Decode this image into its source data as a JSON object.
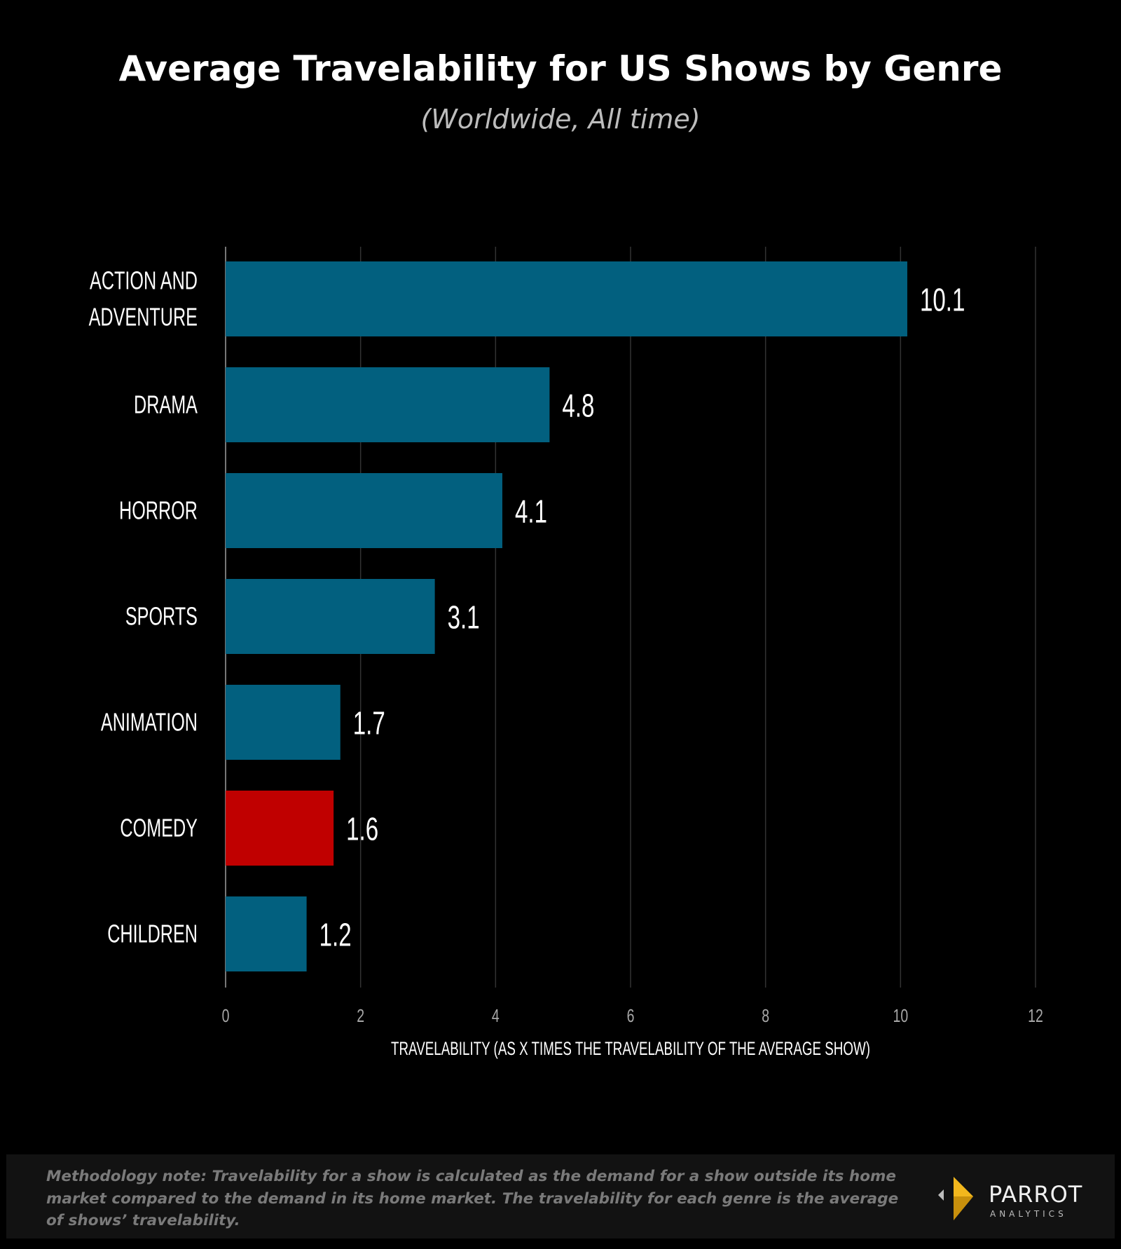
{
  "chart_data": {
    "type": "bar",
    "orientation": "horizontal",
    "title": "Average Travelability for US Shows by Genre",
    "subtitle": "(Worldwide, All time)",
    "categories": [
      "ACTION AND ADVENTURE",
      "DRAMA",
      "HORROR",
      "SPORTS",
      "ANIMATION",
      "COMEDY",
      "CHILDREN"
    ],
    "category_lines": [
      [
        "ACTION AND",
        "ADVENTURE"
      ],
      [
        "DRAMA"
      ],
      [
        "HORROR"
      ],
      [
        "SPORTS"
      ],
      [
        "ANIMATION"
      ],
      [
        "COMEDY"
      ],
      [
        "CHILDREN"
      ]
    ],
    "values": [
      10.1,
      4.8,
      4.1,
      3.1,
      1.7,
      1.6,
      1.2
    ],
    "data_labels": [
      "10.1",
      "4.8",
      "4.1",
      "3.1",
      "1.7",
      "1.6",
      "1.2"
    ],
    "highlight_category": "COMEDY",
    "xlabel": "TRAVELABILITY (AS X TIMES THE TRAVELABILITY OF THE AVERAGE SHOW)",
    "xlim": [
      0,
      12
    ],
    "xticks": [
      0,
      2,
      4,
      6,
      8,
      10,
      12
    ],
    "grid": "vertical",
    "colors": {
      "bar": "#02607f",
      "highlight": "#c00000",
      "background": "#000000",
      "grid": "#333333"
    }
  },
  "footer": {
    "note": "Methodology note: Travelability for a show is calculated as the demand for a show outside its home market compared to the demand in its home market. The travelability for each genre is the average of shows’ travelability.",
    "logo_name": "PARROT",
    "logo_sub": "ANALYTICS"
  }
}
